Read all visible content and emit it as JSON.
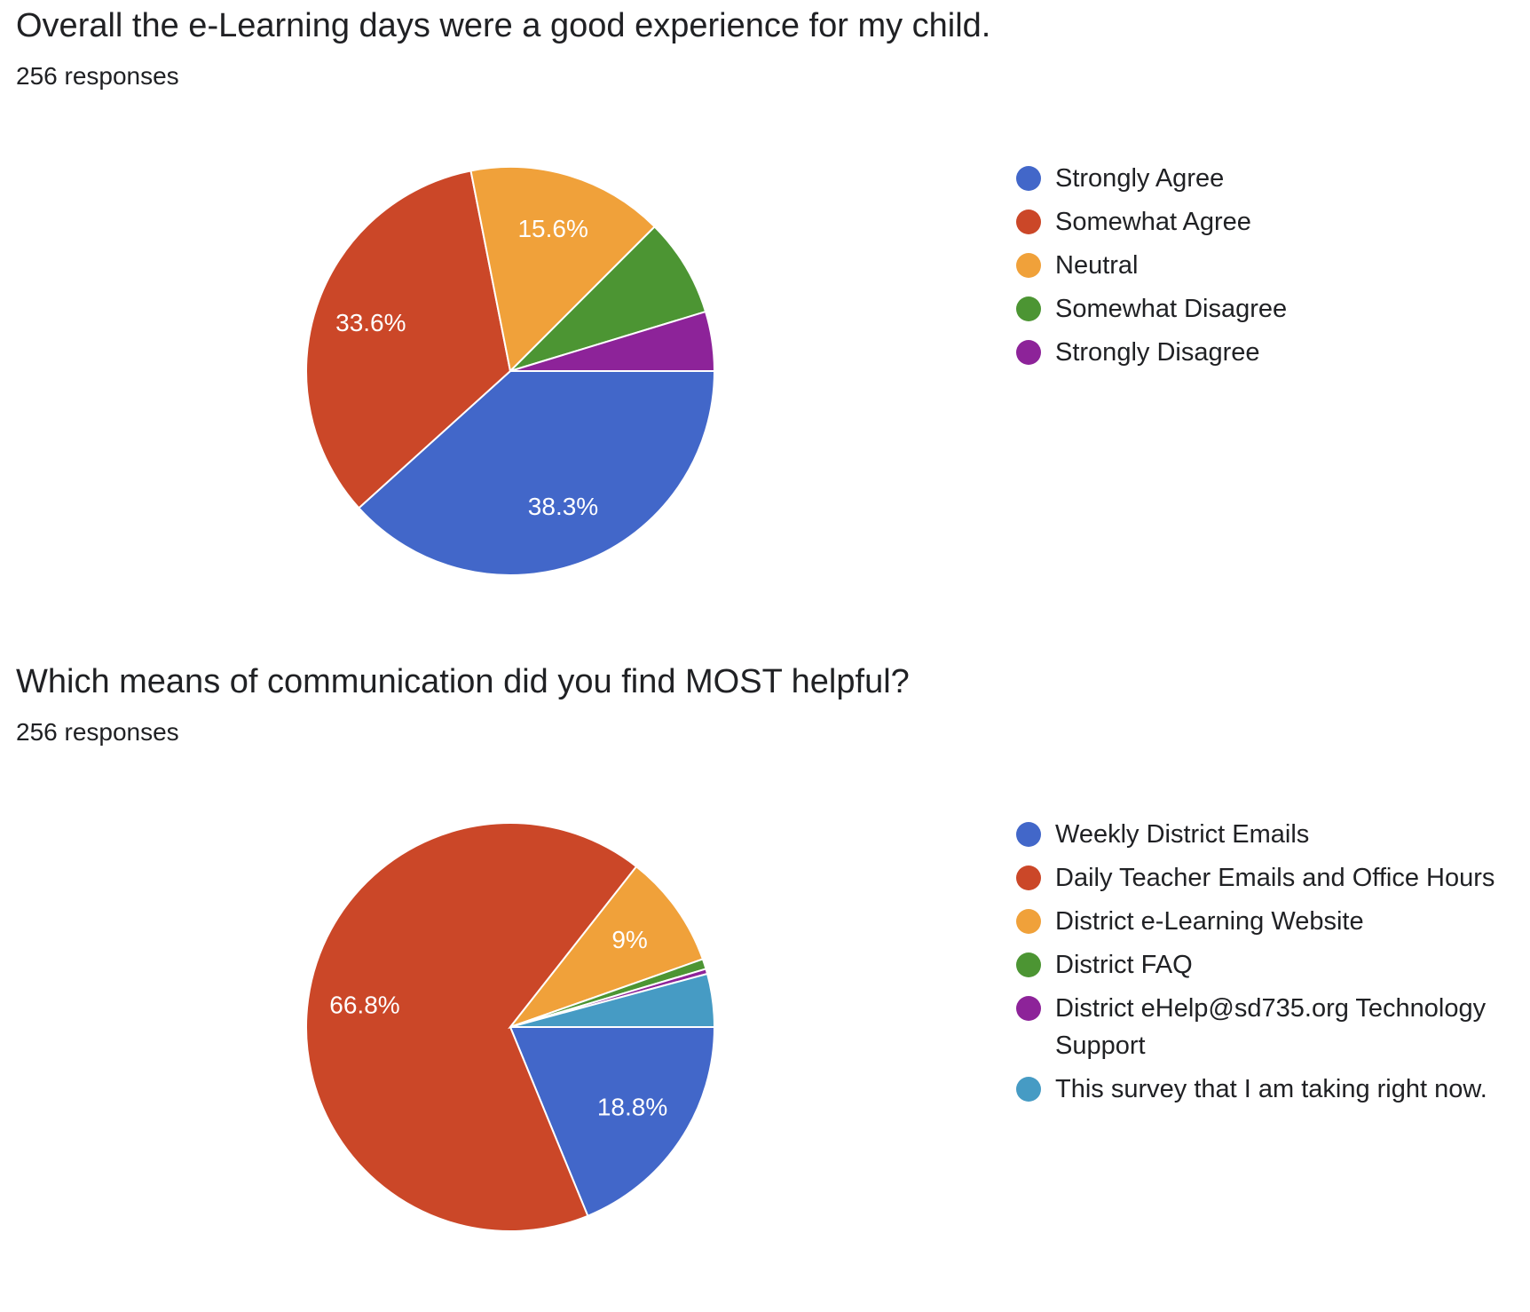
{
  "chart_data": [
    {
      "type": "pie",
      "title": "Overall the e-Learning days were a good experience for my child.",
      "subtitle": "256 responses",
      "categories": [
        "Strongly Agree",
        "Somewhat Agree",
        "Neutral",
        "Somewhat Disagree",
        "Strongly Disagree"
      ],
      "values": [
        38.3,
        33.6,
        15.6,
        7.8,
        4.7
      ],
      "value_labels": [
        "38.3%",
        "33.6%",
        "15.6%",
        null,
        null
      ],
      "colors": [
        "#4267c9",
        "#cb4728",
        "#f0a13a",
        "#4c9533",
        "#8d2399"
      ]
    },
    {
      "type": "pie",
      "title": "Which means of communication did you find MOST helpful?",
      "subtitle": "256 responses",
      "categories": [
        "Weekly District Emails",
        "Daily Teacher Emails and Office Hours",
        "District e-Learning Website",
        "District FAQ",
        "District eHelp@sd735.org Technology Support",
        "This survey that I am taking right now."
      ],
      "values": [
        18.8,
        66.8,
        9,
        0.8,
        0.4,
        4.2
      ],
      "value_labels": [
        "18.8%",
        "66.8%",
        "9%",
        null,
        null,
        null
      ],
      "colors": [
        "#4267c9",
        "#cb4728",
        "#f0a13a",
        "#4c9533",
        "#8d2399",
        "#469bc4"
      ]
    }
  ]
}
